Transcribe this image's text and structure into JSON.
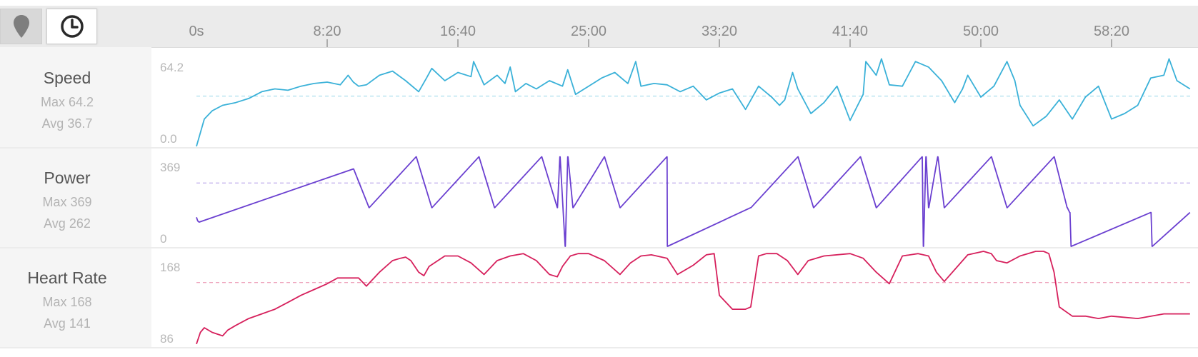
{
  "toolbar": {
    "location_icon": "map-pin-icon",
    "time_icon": "clock-icon",
    "selected": "time"
  },
  "colors": {
    "speed": "#3ab1d8",
    "power": "#6a3fd0",
    "heart_rate": "#d6205c"
  },
  "chart_data": {
    "type": "line",
    "x_axis": {
      "ticks": [
        "0s",
        "8:20",
        "16:40",
        "25:00",
        "33:20",
        "41:40",
        "50:00",
        "58:20"
      ],
      "tick_seconds": [
        0,
        500,
        1000,
        1500,
        2000,
        2500,
        3000,
        3500
      ],
      "range_seconds": [
        0,
        3800
      ]
    },
    "panels": [
      {
        "key": "speed",
        "name": "Speed",
        "max_label": "Max 64.2",
        "avg_label": "Avg 36.7",
        "ymax_label": "64.2",
        "ymin_label": "0.0",
        "ylim": [
          0,
          64.2
        ],
        "avg": 36.7,
        "x": [
          0,
          30,
          60,
          100,
          150,
          200,
          250,
          300,
          350,
          400,
          450,
          500,
          550,
          580,
          600,
          620,
          650,
          700,
          750,
          800,
          850,
          880,
          900,
          950,
          1000,
          1050,
          1060,
          1100,
          1150,
          1180,
          1200,
          1220,
          1260,
          1300,
          1350,
          1400,
          1420,
          1450,
          1500,
          1550,
          1600,
          1650,
          1680,
          1700,
          1750,
          1800,
          1850,
          1900,
          1950,
          2000,
          2050,
          2100,
          2150,
          2200,
          2230,
          2250,
          2280,
          2300,
          2350,
          2400,
          2450,
          2500,
          2550,
          2560,
          2600,
          2620,
          2650,
          2700,
          2750,
          2800,
          2850,
          2900,
          2930,
          2950,
          3000,
          3050,
          3100,
          3130,
          3150,
          3200,
          3250,
          3300,
          3350,
          3400,
          3450,
          3500,
          3550,
          3600,
          3650,
          3700,
          3720,
          3750,
          3800
        ],
        "y": [
          0,
          20,
          26,
          30,
          32,
          35,
          40,
          42,
          41,
          44,
          46,
          47,
          45,
          52,
          47,
          44,
          45,
          52,
          55,
          48,
          40,
          50,
          57,
          48,
          54,
          51,
          62,
          45,
          52,
          46,
          58,
          40,
          46,
          42,
          48,
          44,
          56,
          38,
          44,
          50,
          54,
          46,
          62,
          44,
          46,
          45,
          40,
          44,
          34,
          39,
          42,
          27,
          44,
          36,
          30,
          34,
          54,
          42,
          24,
          32,
          44,
          19,
          38,
          62,
          52,
          64,
          45,
          44,
          62,
          58,
          48,
          32,
          42,
          52,
          36,
          44,
          62,
          48,
          30,
          15,
          22,
          34,
          20,
          36,
          44,
          20,
          24,
          30,
          50,
          52,
          64,
          48,
          42
        ]
      },
      {
        "key": "power",
        "name": "Power",
        "max_label": "Max 369",
        "avg_label": "Avg 262",
        "ymax_label": "369",
        "ymin_label": "0",
        "ylim": [
          0,
          369
        ],
        "avg": 262,
        "x": [
          0,
          5,
          10,
          600,
          601,
          660,
          661,
          840,
          841,
          900,
          901,
          1080,
          1081,
          1140,
          1141,
          1320,
          1321,
          1380,
          1381,
          1390,
          1391,
          1410,
          1411,
          1420,
          1421,
          1440,
          1441,
          1560,
          1561,
          1620,
          1621,
          1799,
          1800,
          1801,
          1802,
          2120,
          2121,
          2300,
          2301,
          2360,
          2361,
          2539,
          2540,
          2600,
          2601,
          2775,
          2776,
          2780,
          2781,
          2790,
          2791,
          2800,
          2801,
          2835,
          2836,
          2860,
          2861,
          3040,
          3041,
          3100,
          3101,
          3280,
          3281,
          3330,
          3331,
          3340,
          3341,
          3345,
          3346,
          3650,
          3651,
          3655,
          3656,
          3800
        ],
        "y": [
          120,
          105,
          100,
          320,
          320,
          160,
          160,
          370,
          370,
          160,
          160,
          370,
          370,
          160,
          160,
          370,
          370,
          160,
          160,
          370,
          370,
          0,
          0,
          370,
          370,
          160,
          160,
          370,
          370,
          160,
          160,
          370,
          370,
          0,
          0,
          160,
          160,
          370,
          370,
          160,
          160,
          370,
          370,
          160,
          160,
          370,
          370,
          0,
          0,
          370,
          370,
          160,
          160,
          370,
          370,
          160,
          160,
          370,
          370,
          160,
          160,
          370,
          370,
          160,
          160,
          140,
          140,
          0,
          0,
          140,
          140,
          0,
          0,
          140
        ]
      },
      {
        "key": "heart_rate",
        "name": "Heart Rate",
        "max_label": "Max 168",
        "avg_label": "Avg 141",
        "ymax_label": "168",
        "ymin_label": "86",
        "ylim": [
          86,
          168
        ],
        "avg": 141,
        "x": [
          0,
          15,
          30,
          60,
          100,
          120,
          150,
          200,
          250,
          300,
          350,
          400,
          450,
          500,
          540,
          580,
          620,
          650,
          700,
          750,
          780,
          800,
          820,
          850,
          870,
          890,
          950,
          1000,
          1050,
          1100,
          1150,
          1200,
          1250,
          1300,
          1350,
          1380,
          1400,
          1430,
          1460,
          1500,
          1560,
          1620,
          1660,
          1700,
          1740,
          1800,
          1840,
          1900,
          1950,
          1980,
          2000,
          2050,
          2100,
          2120,
          2150,
          2180,
          2220,
          2260,
          2300,
          2340,
          2400,
          2500,
          2550,
          2600,
          2650,
          2700,
          2760,
          2800,
          2830,
          2860,
          2950,
          3010,
          3040,
          3060,
          3100,
          3150,
          3210,
          3240,
          3260,
          3280,
          3300,
          3350,
          3400,
          3450,
          3500,
          3600,
          3700,
          3800
        ],
        "y": [
          88,
          98,
          102,
          98,
          95,
          100,
          104,
          110,
          114,
          118,
          124,
          130,
          135,
          140,
          145,
          145,
          145,
          138,
          150,
          160,
          162,
          163,
          160,
          150,
          147,
          155,
          164,
          164,
          158,
          148,
          160,
          164,
          166,
          160,
          148,
          146,
          155,
          164,
          166,
          166,
          160,
          148,
          158,
          164,
          165,
          162,
          148,
          156,
          165,
          166,
          130,
          118,
          118,
          120,
          164,
          166,
          166,
          160,
          148,
          160,
          164,
          166,
          162,
          150,
          140,
          164,
          166,
          164,
          150,
          142,
          165,
          168,
          166,
          160,
          158,
          164,
          168,
          168,
          166,
          150,
          120,
          112,
          112,
          110,
          112,
          110,
          114,
          114
        ]
      }
    ]
  }
}
